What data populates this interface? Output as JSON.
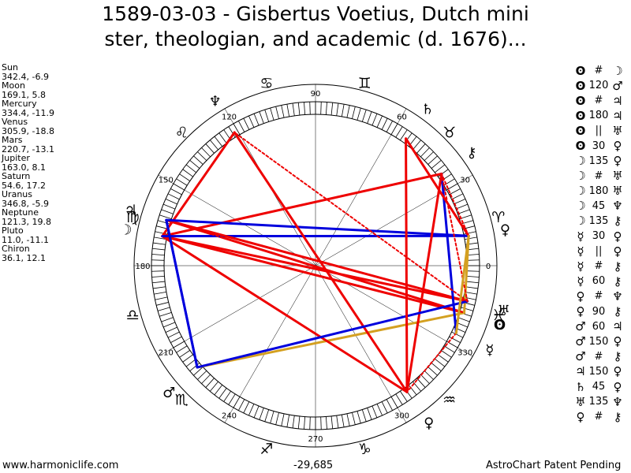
{
  "title": {
    "line1": "1589-03-03 - Gisbertus Voetius, Dutch mini",
    "line2": "ster, theologian, and academic (d. 1676)..."
  },
  "planets": [
    {
      "name": "Sun",
      "coords": "342.4, -6.9",
      "glyph": "ʘ",
      "lon": 342.4,
      "color": "#000000"
    },
    {
      "name": "Moon",
      "coords": "169.1, 5.8",
      "glyph": "☽",
      "lon": 169.1,
      "color": "#000000"
    },
    {
      "name": "Mercury",
      "coords": "334.4, -11.9",
      "glyph": "☿",
      "lon": 334.4,
      "color": "#000000"
    },
    {
      "name": "Venus",
      "coords": "305.9, -18.8",
      "glyph": "♀",
      "lon": 305.9,
      "color": "#000000"
    },
    {
      "name": "Mars",
      "coords": "220.7, -13.1",
      "glyph": "♂",
      "lon": 220.7,
      "color": "#000000"
    },
    {
      "name": "Jupiter",
      "coords": "163.0, 8.1",
      "glyph": "♃",
      "lon": 163.0,
      "color": "#000000"
    },
    {
      "name": "Saturn",
      "coords": "54.6, 17.2",
      "glyph": "♄",
      "lon": 54.6,
      "color": "#000000"
    },
    {
      "name": "Uranus",
      "coords": "346.8, -5.9",
      "glyph": "♅",
      "lon": 346.8,
      "color": "#000000"
    },
    {
      "name": "Neptune",
      "coords": "121.3, 19.8",
      "glyph": "♆",
      "lon": 121.3,
      "color": "#000000"
    },
    {
      "name": "Pluto",
      "coords": "11.0, -11.1",
      "glyph": "♀",
      "lon": 11.0,
      "color": "#000000"
    },
    {
      "name": "Chiron",
      "coords": "36.1, 12.1",
      "glyph": "⚷",
      "lon": 36.1,
      "color": "#000000"
    }
  ],
  "aspect_list": [
    {
      "p1": "ʘ",
      "aspect": "#",
      "p2": "☽"
    },
    {
      "p1": "ʘ",
      "aspect": "120",
      "p2": "♂"
    },
    {
      "p1": "ʘ",
      "aspect": "#",
      "p2": "♃"
    },
    {
      "p1": "ʘ",
      "aspect": "180",
      "p2": "♃"
    },
    {
      "p1": "ʘ",
      "aspect": "||",
      "p2": "♅"
    },
    {
      "p1": "ʘ",
      "aspect": "30",
      "p2": "♀"
    },
    {
      "p1": "☽",
      "aspect": "135",
      "p2": "♀"
    },
    {
      "p1": "☽",
      "aspect": "#",
      "p2": "♅"
    },
    {
      "p1": "☽",
      "aspect": "180",
      "p2": "♅"
    },
    {
      "p1": "☽",
      "aspect": "45",
      "p2": "♆"
    },
    {
      "p1": "☽",
      "aspect": "135",
      "p2": "⚷"
    },
    {
      "p1": "☿",
      "aspect": "30",
      "p2": "♀"
    },
    {
      "p1": "☿",
      "aspect": "||",
      "p2": "♀"
    },
    {
      "p1": "☿",
      "aspect": "#",
      "p2": "⚷"
    },
    {
      "p1": "☿",
      "aspect": "60",
      "p2": "⚷"
    },
    {
      "p1": "♀",
      "aspect": "#",
      "p2": "♆"
    },
    {
      "p1": "♀",
      "aspect": "90",
      "p2": "⚷"
    },
    {
      "p1": "♂",
      "aspect": "60",
      "p2": "♃"
    },
    {
      "p1": "♂",
      "aspect": "150",
      "p2": "♀"
    },
    {
      "p1": "♂",
      "aspect": "#",
      "p2": "⚷"
    },
    {
      "p1": "♃",
      "aspect": "150",
      "p2": "♀"
    },
    {
      "p1": "♄",
      "aspect": "45",
      "p2": "♀"
    },
    {
      "p1": "♅",
      "aspect": "135",
      "p2": "♆"
    },
    {
      "p1": "♀",
      "aspect": "#",
      "p2": "⚷"
    }
  ],
  "wheel": {
    "degree_labels": [
      "0",
      "30",
      "60",
      "90",
      "120",
      "150",
      "180",
      "210",
      "240",
      "270",
      "300",
      "330"
    ],
    "signs": [
      "♈",
      "♉",
      "♊",
      "♋",
      "♌",
      "♍",
      "♎",
      "♏",
      "♐",
      "♑",
      "♒",
      "♓"
    ],
    "aspect_colors": {
      "red": "#ee0000",
      "blue": "#0000dd",
      "gold": "#d4a020"
    }
  },
  "footer": {
    "left": "www.harmoniclife.com",
    "middle": "-29,685",
    "right": "AstroChart Patent Pending"
  }
}
